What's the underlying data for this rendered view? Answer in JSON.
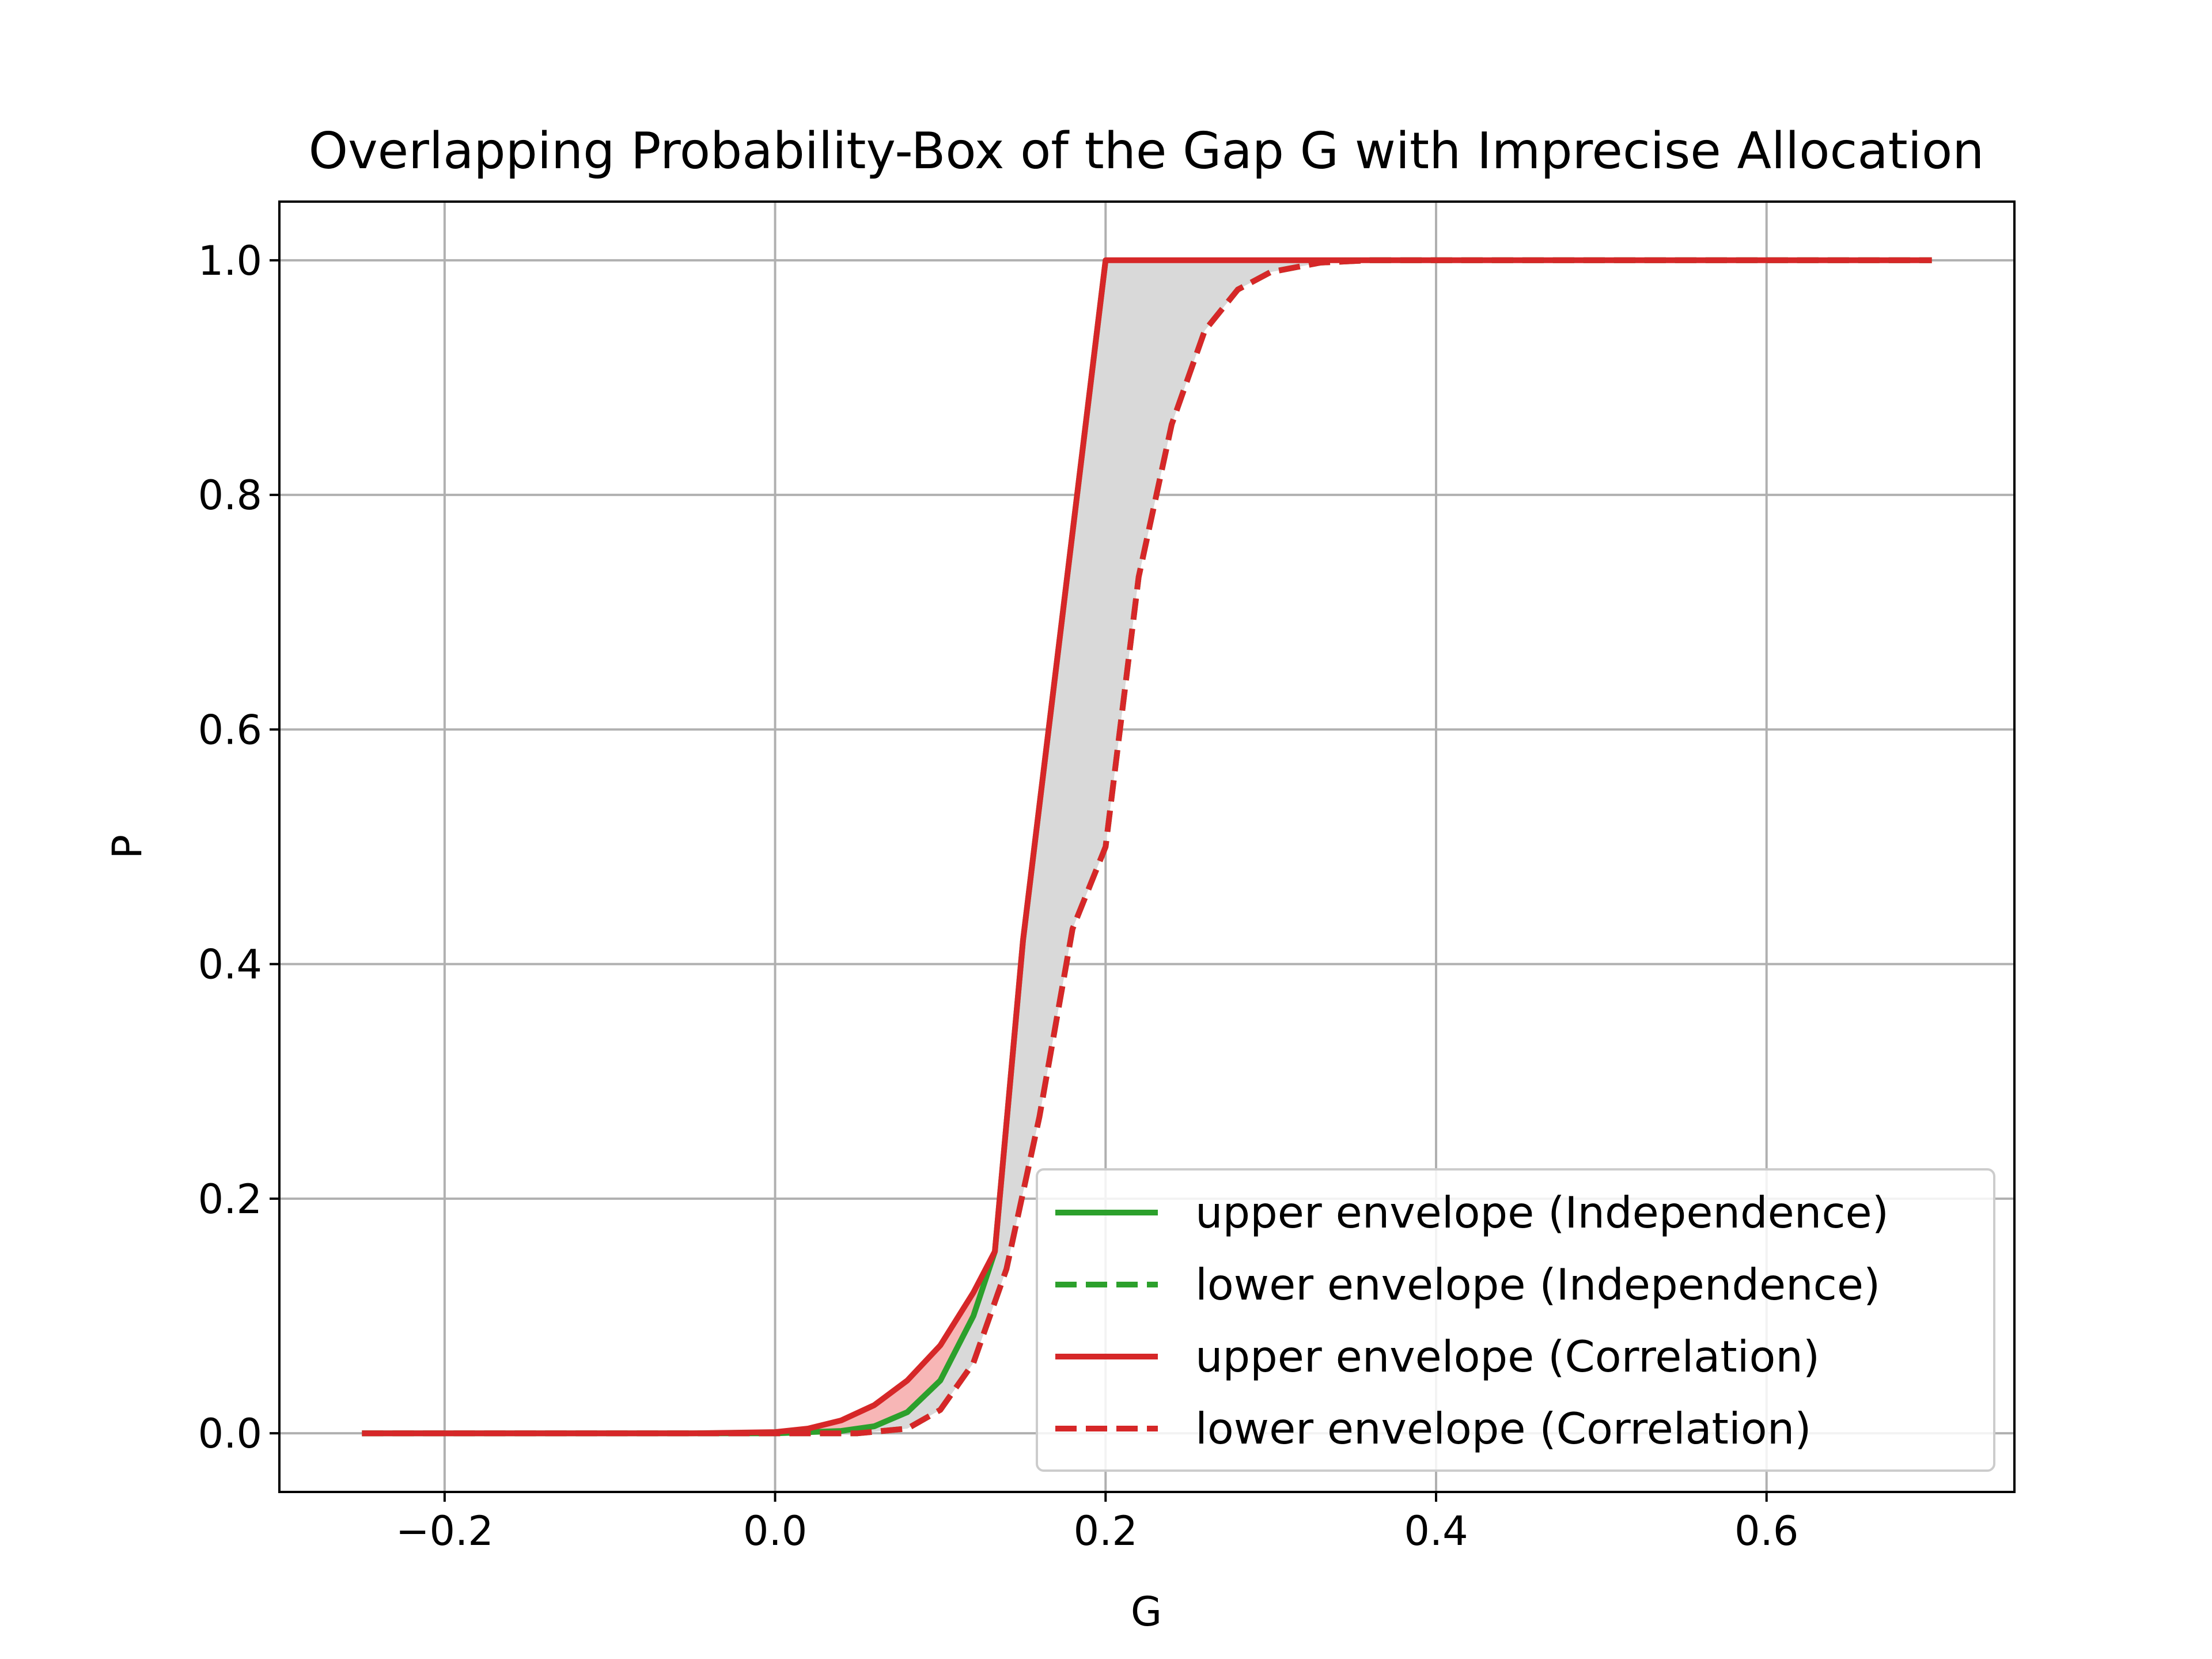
{
  "chart_data": {
    "type": "line",
    "title": "Overlapping Probability-Box of the Gap G with Imprecise Allocation",
    "xlabel": "G",
    "ylabel": "P",
    "xlim": [
      -0.3,
      0.75
    ],
    "ylim": [
      -0.05,
      1.05
    ],
    "xticks": [
      -0.2,
      0.0,
      0.2,
      0.4,
      0.6
    ],
    "xtick_labels": [
      "−0.2",
      "0.0",
      "0.2",
      "0.4",
      "0.6"
    ],
    "yticks": [
      0.0,
      0.2,
      0.4,
      0.6,
      0.8,
      1.0
    ],
    "ytick_labels": [
      "0.0",
      "0.2",
      "0.4",
      "0.6",
      "0.8",
      "1.0"
    ],
    "grid": true,
    "legend_position": "lower-right",
    "colors": {
      "independence": "#2ca02c",
      "correlation": "#d62728",
      "band_fill": "#d9d9d9",
      "correlation_extra_fill": "#f7b6b6",
      "grid": "#b0b0b0"
    },
    "series": [
      {
        "name": "upper envelope (Independence)",
        "style": "solid",
        "color": "#2ca02c",
        "x": [
          -0.25,
          0.0,
          0.04,
          0.06,
          0.08,
          0.1,
          0.12,
          0.133,
          0.15,
          0.2
        ],
        "y": [
          0.0,
          0.0,
          0.002,
          0.006,
          0.018,
          0.045,
          0.1,
          0.155,
          0.42,
          1.0
        ]
      },
      {
        "name": "lower envelope (Independence)",
        "style": "dashed",
        "color": "#2ca02c",
        "x": [
          -0.25,
          0.05,
          0.08,
          0.1,
          0.12,
          0.14,
          0.16,
          0.18,
          0.2,
          0.22,
          0.24,
          0.26,
          0.28,
          0.3,
          0.33,
          0.36,
          0.7
        ],
        "y": [
          0.0,
          0.0,
          0.004,
          0.02,
          0.06,
          0.14,
          0.27,
          0.43,
          0.5,
          0.73,
          0.86,
          0.94,
          0.975,
          0.99,
          0.998,
          1.0,
          1.0
        ]
      },
      {
        "name": "upper envelope (Correlation)",
        "style": "solid",
        "color": "#d62728",
        "x": [
          -0.25,
          -0.05,
          0.0,
          0.02,
          0.04,
          0.06,
          0.08,
          0.1,
          0.12,
          0.133,
          0.15,
          0.2,
          0.7
        ],
        "y": [
          0.0,
          0.0,
          0.001,
          0.004,
          0.011,
          0.024,
          0.045,
          0.075,
          0.12,
          0.155,
          0.42,
          1.0,
          1.0
        ]
      },
      {
        "name": "lower envelope (Correlation)",
        "style": "dashed",
        "color": "#d62728",
        "x": [
          -0.25,
          0.05,
          0.08,
          0.1,
          0.12,
          0.14,
          0.16,
          0.18,
          0.2,
          0.22,
          0.24,
          0.26,
          0.28,
          0.3,
          0.33,
          0.36,
          0.7
        ],
        "y": [
          0.0,
          0.0,
          0.004,
          0.02,
          0.06,
          0.14,
          0.27,
          0.43,
          0.5,
          0.73,
          0.86,
          0.94,
          0.975,
          0.99,
          0.998,
          1.0,
          1.0
        ]
      }
    ]
  }
}
